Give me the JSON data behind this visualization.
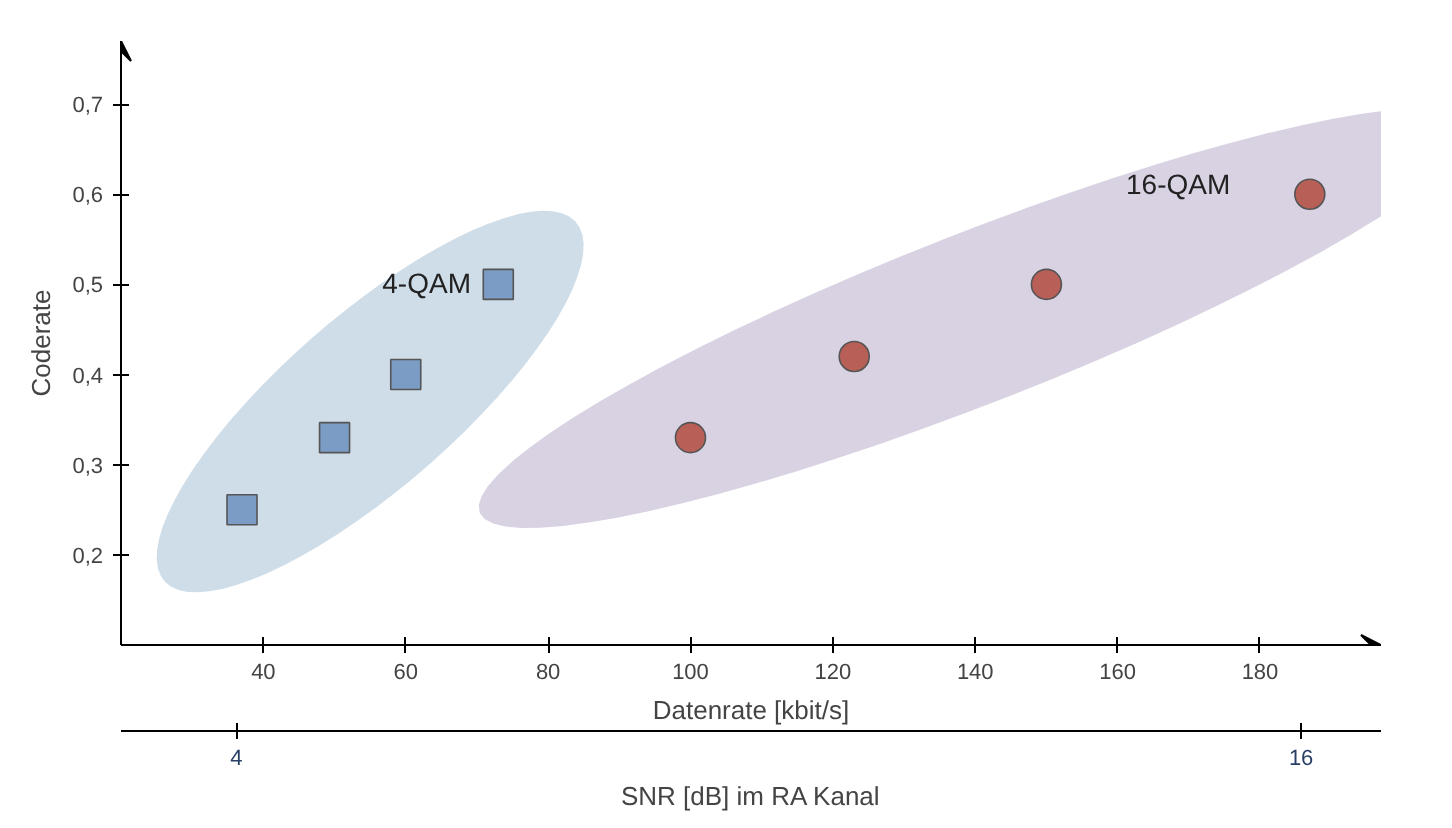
{
  "chart_data": {
    "type": "scatter",
    "xlabel": "Datenrate [kbit/s]",
    "ylabel": "Coderate",
    "x2label": "SNR [dB] im RA Kanal",
    "series": [
      {
        "name": "4-QAM",
        "color": "#7b9cc4",
        "marker": "square",
        "x": [
          37,
          50,
          60,
          73
        ],
        "values": [
          0.25,
          0.33,
          0.4,
          0.5
        ]
      },
      {
        "name": "16-QAM",
        "color": "#b85f57",
        "marker": "circle",
        "x": [
          100,
          123,
          150,
          187
        ],
        "values": [
          0.33,
          0.42,
          0.5,
          0.6
        ]
      }
    ],
    "xlim": [
      20,
      197
    ],
    "xticks": [
      40,
      60,
      80,
      100,
      120,
      140,
      160,
      180
    ],
    "ylim": [
      0.1,
      0.77
    ],
    "yticks": [
      {
        "value": 0.2,
        "label": "0,2"
      },
      {
        "value": 0.3,
        "label": "0,3"
      },
      {
        "value": 0.4,
        "label": "0,4"
      },
      {
        "value": 0.5,
        "label": "0,5"
      },
      {
        "value": 0.6,
        "label": "0,6"
      },
      {
        "value": 0.7,
        "label": "0,7"
      }
    ],
    "x2lim": [
      2.7,
      16.9
    ],
    "x2ticks": [
      4,
      16
    ],
    "grid": false,
    "legend": false
  }
}
